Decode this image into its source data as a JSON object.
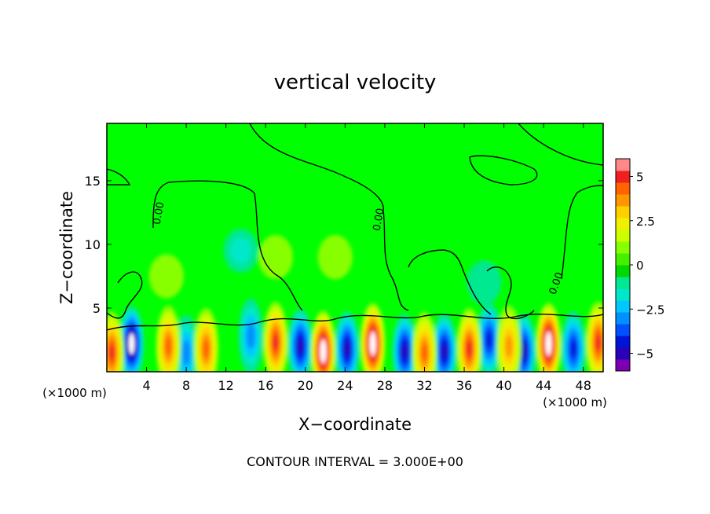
{
  "chart_data": {
    "type": "contour",
    "title": "vertical velocity",
    "xlabel": "X−coordinate",
    "ylabel": "Z−coordinate",
    "x_unit_left": "(×1000 m)",
    "x_unit_right": "(×1000 m)",
    "xlim": [
      0,
      50
    ],
    "ylim": [
      0,
      19.5
    ],
    "x_ticks": [
      4,
      8,
      12,
      16,
      20,
      24,
      28,
      32,
      36,
      40,
      44,
      48
    ],
    "y_ticks": [
      5,
      10,
      15
    ],
    "contour_interval_text": "CONTOUR INTERVAL = 3.000E+00",
    "contour_label": "0.00",
    "colorbar": {
      "range": [
        -6,
        6
      ],
      "ticks": [
        5,
        2.5,
        0,
        -2.5,
        -5
      ],
      "tick_labels": [
        "5",
        "2.5",
        "0",
        "−2.5",
        "−5"
      ],
      "colors": [
        "#7b00b4",
        "#2a00b8",
        "#0014d8",
        "#0050ff",
        "#0090ff",
        "#00c8ff",
        "#00e8c8",
        "#00e890",
        "#00d800",
        "#44f000",
        "#88ff00",
        "#ccff00",
        "#f0f000",
        "#ffd000",
        "#ff9800",
        "#ff6400",
        "#f02020",
        "#ff8888"
      ]
    },
    "updrafts": [
      {
        "x": 0.5,
        "z": 1.5,
        "w": 4.5
      },
      {
        "x": 6.2,
        "z": 2.0,
        "w": 4.0
      },
      {
        "x": 10.0,
        "z": 1.8,
        "w": 4.0
      },
      {
        "x": 17.0,
        "z": 2.3,
        "w": 4.5
      },
      {
        "x": 21.8,
        "z": 1.6,
        "w": 6.5
      },
      {
        "x": 26.8,
        "z": 2.2,
        "w": 7.0
      },
      {
        "x": 32.0,
        "z": 1.5,
        "w": 4.0
      },
      {
        "x": 36.5,
        "z": 1.8,
        "w": 5.0
      },
      {
        "x": 40.5,
        "z": 2.0,
        "w": 3.5
      },
      {
        "x": 44.5,
        "z": 2.2,
        "w": 6.5
      },
      {
        "x": 49.5,
        "z": 2.3,
        "w": 5.0
      }
    ],
    "downdrafts": [
      {
        "x": 2.5,
        "z": 2.2,
        "w": -6.0
      },
      {
        "x": 8.0,
        "z": 1.5,
        "w": -3.0
      },
      {
        "x": 14.5,
        "z": 2.8,
        "w": -2.5
      },
      {
        "x": 19.5,
        "z": 2.0,
        "w": -4.5
      },
      {
        "x": 24.2,
        "z": 1.8,
        "w": -5.0
      },
      {
        "x": 30.0,
        "z": 1.6,
        "w": -5.0
      },
      {
        "x": 34.0,
        "z": 1.6,
        "w": -5.0
      },
      {
        "x": 38.5,
        "z": 2.5,
        "w": -4.0
      },
      {
        "x": 42.0,
        "z": 1.6,
        "w": -5.0
      },
      {
        "x": 47.0,
        "z": 1.8,
        "w": -4.0
      }
    ],
    "upper_features": [
      {
        "x": 13.5,
        "z": 9.5,
        "w": -1.2
      },
      {
        "x": 23.0,
        "z": 9.0,
        "w": 1.0
      },
      {
        "x": 17.0,
        "z": 9.0,
        "w": 0.8
      },
      {
        "x": 6.0,
        "z": 7.5,
        "w": 0.8
      },
      {
        "x": 38.0,
        "z": 7.0,
        "w": -1.0
      }
    ]
  }
}
